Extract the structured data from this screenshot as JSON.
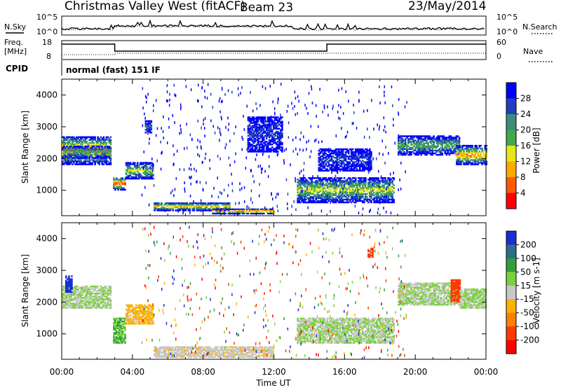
{
  "header": {
    "station": "Christmas Valley West (fitACF)",
    "beam": "Beam 23",
    "date": "23/May/2014"
  },
  "top_panel": {
    "left_label": "N.Sky",
    "left_ticks": [
      "10^5",
      "10^0"
    ],
    "right_ticks": [
      "10^5",
      "10^0"
    ],
    "right_label": "N.Search"
  },
  "freq_panel": {
    "left_label_1": "Freq.",
    "left_label_2": "[MHz]",
    "left_ticks": [
      "18",
      "8"
    ],
    "right_ticks": [
      "60",
      "0"
    ],
    "right_label": "Nave"
  },
  "cpid": {
    "label": "CPID",
    "mode": "normal (fast) 151 IF"
  },
  "colors": {
    "white_background": "#ffffff",
    "ground_gray": "#c8c8c8"
  },
  "chart_data": [
    {
      "type": "heatmap",
      "title": "Power",
      "xlabel": "Time UT",
      "ylabel": "Slant Range [km]",
      "x_ticks": [
        "00:00",
        "04:00",
        "08:00",
        "12:00",
        "16:00",
        "20:00",
        "00:00"
      ],
      "xlim_hours": [
        0,
        24
      ],
      "y_ticks": [
        1000,
        2000,
        3000,
        4000
      ],
      "ylim": [
        200,
        4500
      ],
      "colorbar": {
        "label": "Power [dB]",
        "ticks": [
          4,
          8,
          12,
          16,
          20,
          24,
          28
        ],
        "range": [
          0,
          32
        ],
        "colors": [
          "#0000ff",
          "#1f3fbf",
          "#3c8c7c",
          "#3faa4a",
          "#e6e61a",
          "#ffaa00",
          "#ff5a00",
          "#ff0000"
        ]
      },
      "echo_bands": [
        {
          "t": [
            0.0,
            2.8
          ],
          "r": [
            1800,
            2700
          ],
          "core_db": 26
        },
        {
          "t": [
            0.0,
            2.8
          ],
          "r": [
            2000,
            2400
          ],
          "core_db": 14
        },
        {
          "t": [
            2.9,
            3.6
          ],
          "r": [
            1000,
            1400
          ],
          "core_db": 28
        },
        {
          "t": [
            3.6,
            5.2
          ],
          "r": [
            1350,
            1850
          ],
          "core_db": 18
        },
        {
          "t": [
            4.7,
            5.1
          ],
          "r": [
            2800,
            3200
          ],
          "core_db": 10
        },
        {
          "t": [
            5.2,
            9.5
          ],
          "r": [
            350,
            600
          ],
          "core_db": 22
        },
        {
          "t": [
            8.5,
            12.0
          ],
          "r": [
            250,
            400
          ],
          "core_db": 28
        },
        {
          "t": [
            10.5,
            12.5
          ],
          "r": [
            2200,
            3300
          ],
          "core_db": 6
        },
        {
          "t": [
            13.3,
            18.8
          ],
          "r": [
            600,
            1400
          ],
          "core_db": 18
        },
        {
          "t": [
            14.5,
            17.5
          ],
          "r": [
            1600,
            2300
          ],
          "core_db": 6
        },
        {
          "t": [
            19.0,
            22.5
          ],
          "r": [
            2100,
            2700
          ],
          "core_db": 14
        },
        {
          "t": [
            22.3,
            24.0
          ],
          "r": [
            1800,
            2400
          ],
          "core_db": 24
        }
      ]
    },
    {
      "type": "heatmap",
      "title": "Velocity",
      "xlabel": "Time UT",
      "ylabel": "Slant Range [km]",
      "x_ticks": [
        "00:00",
        "04:00",
        "08:00",
        "12:00",
        "16:00",
        "20:00",
        "00:00"
      ],
      "xlim_hours": [
        0,
        24
      ],
      "y_ticks": [
        1000,
        2000,
        3000,
        4000
      ],
      "ylim": [
        200,
        4500
      ],
      "colorbar": {
        "label": "Velocity [m s-1]",
        "ticks": [
          200,
          100,
          50,
          15,
          -15,
          -50,
          -100,
          -200
        ],
        "range": [
          -250,
          250
        ],
        "colors": [
          "#1a2fd0",
          "#2f6e8a",
          "#2f9f3a",
          "#7ad23a",
          "#c8c8c8",
          "#ffb000",
          "#ff7f00",
          "#ff3a00",
          "#ff0000"
        ]
      },
      "echo_bands": [
        {
          "t": [
            0.0,
            2.8
          ],
          "r": [
            1800,
            2500
          ],
          "vel": 0
        },
        {
          "t": [
            0.2,
            0.6
          ],
          "r": [
            2300,
            2800
          ],
          "vel": 180
        },
        {
          "t": [
            2.9,
            3.6
          ],
          "r": [
            700,
            1500
          ],
          "vel": 30
        },
        {
          "t": [
            3.6,
            5.2
          ],
          "r": [
            1300,
            1900
          ],
          "vel": -40
        },
        {
          "t": [
            5.2,
            12.0
          ],
          "r": [
            250,
            600
          ],
          "vel": -20
        },
        {
          "t": [
            13.3,
            18.8
          ],
          "r": [
            700,
            1500
          ],
          "vel": 0
        },
        {
          "t": [
            17.3,
            17.6
          ],
          "r": [
            3400,
            3700
          ],
          "vel": -220
        },
        {
          "t": [
            19.0,
            22.5
          ],
          "r": [
            1900,
            2600
          ],
          "vel": 0
        },
        {
          "t": [
            22.0,
            22.5
          ],
          "r": [
            2000,
            2700
          ],
          "vel": -200
        },
        {
          "t": [
            22.5,
            24.0
          ],
          "r": [
            1800,
            2400
          ],
          "vel": 0
        }
      ]
    }
  ]
}
